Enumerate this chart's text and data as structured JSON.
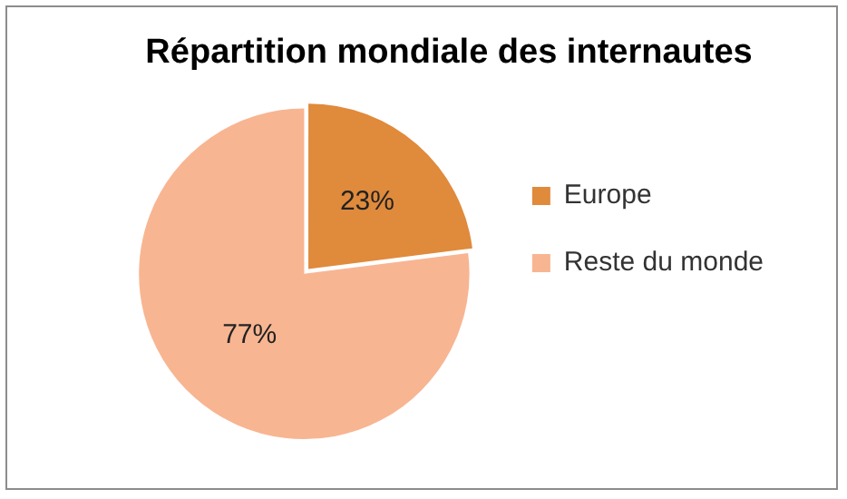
{
  "chart_data": {
    "type": "pie",
    "title": "Répartition mondiale des internautes",
    "categories": [
      "Europe",
      "Reste du monde"
    ],
    "values": [
      23,
      77
    ],
    "colors": [
      "#e08a3c",
      "#f8b592"
    ],
    "value_labels": [
      "23%",
      "77%"
    ],
    "legend": "right"
  }
}
